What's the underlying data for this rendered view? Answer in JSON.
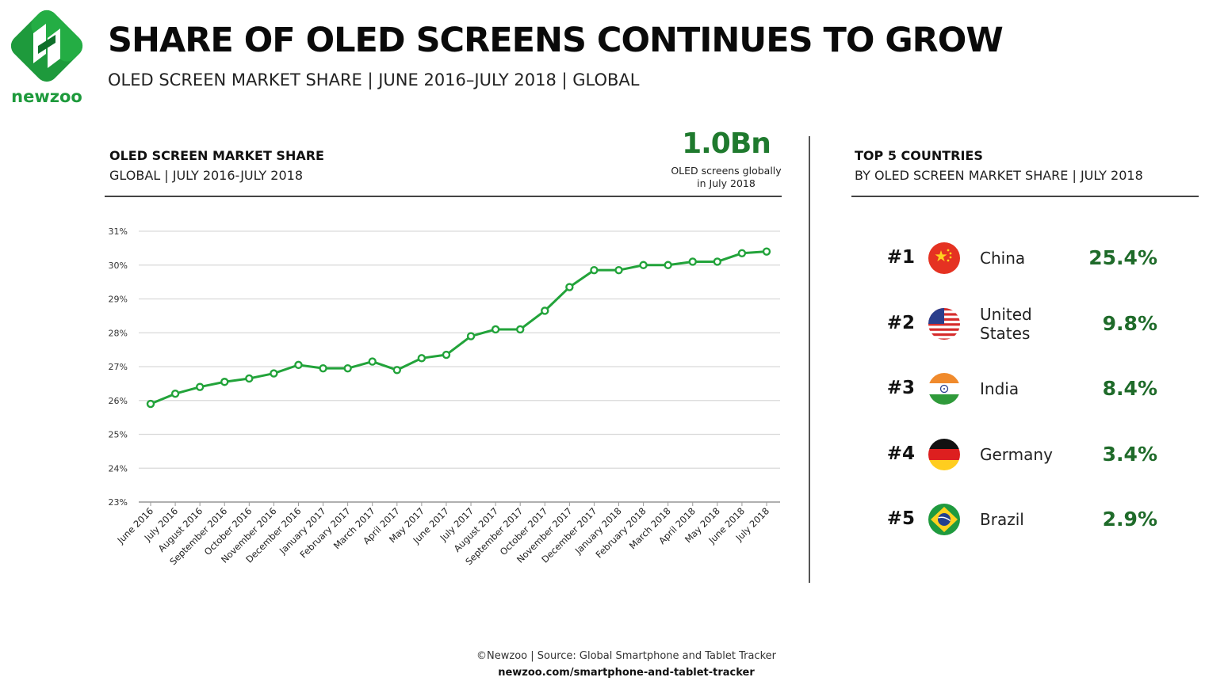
{
  "brand": {
    "name": "newzoo",
    "colors": {
      "green": "#1e9a3c",
      "dark_green": "#0f6f2a",
      "line": "#22a33a",
      "value": "#1f6b2a"
    }
  },
  "header": {
    "title": "SHARE OF OLED SCREENS CONTINUES TO GROW",
    "subtitle": "OLED SCREEN MARKET SHARE | JUNE 2016–JULY 2018 | GLOBAL"
  },
  "chart_panel": {
    "title": "OLED SCREEN MARKET SHARE",
    "subtitle": "GLOBAL | JULY 2016-JULY 2018",
    "stat_value": "1.0Bn",
    "stat_caption_line1": "OLED screens globally",
    "stat_caption_line2": "in July 2018"
  },
  "chart_data": {
    "type": "line",
    "title": "OLED SCREEN MARKET SHARE",
    "xlabel": "",
    "ylabel": "",
    "ylim": [
      23,
      31
    ],
    "y_ticks": [
      "23%",
      "24%",
      "25%",
      "26%",
      "27%",
      "28%",
      "29%",
      "30%",
      "31%"
    ],
    "grid": true,
    "categories": [
      "June 2016",
      "July 2016",
      "August 2016",
      "September 2016",
      "October 2016",
      "November 2016",
      "December 2016",
      "January 2017",
      "February 2017",
      "March 2017",
      "April 2017",
      "May 2017",
      "June 2017",
      "July 2017",
      "August 2017",
      "September 2017",
      "October 2017",
      "November 2017",
      "December 2017",
      "January 2018",
      "February 2018",
      "March 2018",
      "April 2018",
      "May 2018",
      "June 2018",
      "July 2018"
    ],
    "series": [
      {
        "name": "OLED screen market share",
        "color": "#22a33a",
        "values": [
          25.9,
          26.2,
          26.4,
          26.55,
          26.65,
          26.8,
          27.05,
          26.95,
          26.95,
          27.15,
          26.9,
          27.25,
          27.35,
          27.9,
          28.1,
          28.1,
          28.65,
          29.35,
          29.85,
          29.85,
          30.0,
          30.0,
          30.1,
          30.1,
          30.35,
          30.4
        ]
      }
    ]
  },
  "countries_panel": {
    "title": "TOP 5 COUNTRIES",
    "subtitle": "BY OLED SCREEN MARKET SHARE | JULY  2018",
    "rows": [
      {
        "rank": "#1",
        "country": "China",
        "country_line2": "",
        "share": "25.4%",
        "flag_icon": "china-flag-icon"
      },
      {
        "rank": "#2",
        "country": "United",
        "country_line2": "States",
        "share": "9.8%",
        "flag_icon": "usa-flag-icon"
      },
      {
        "rank": "#3",
        "country": "India",
        "country_line2": "",
        "share": "8.4%",
        "flag_icon": "india-flag-icon"
      },
      {
        "rank": "#4",
        "country": "Germany",
        "country_line2": "",
        "share": "3.4%",
        "flag_icon": "germany-flag-icon"
      },
      {
        "rank": "#5",
        "country": "Brazil",
        "country_line2": "",
        "share": "2.9%",
        "flag_icon": "brazil-flag-icon"
      }
    ]
  },
  "footer": {
    "source": "©Newzoo | Source: Global Smartphone and Tablet Tracker",
    "url": "newzoo.com/smartphone-and-tablet-tracker"
  }
}
